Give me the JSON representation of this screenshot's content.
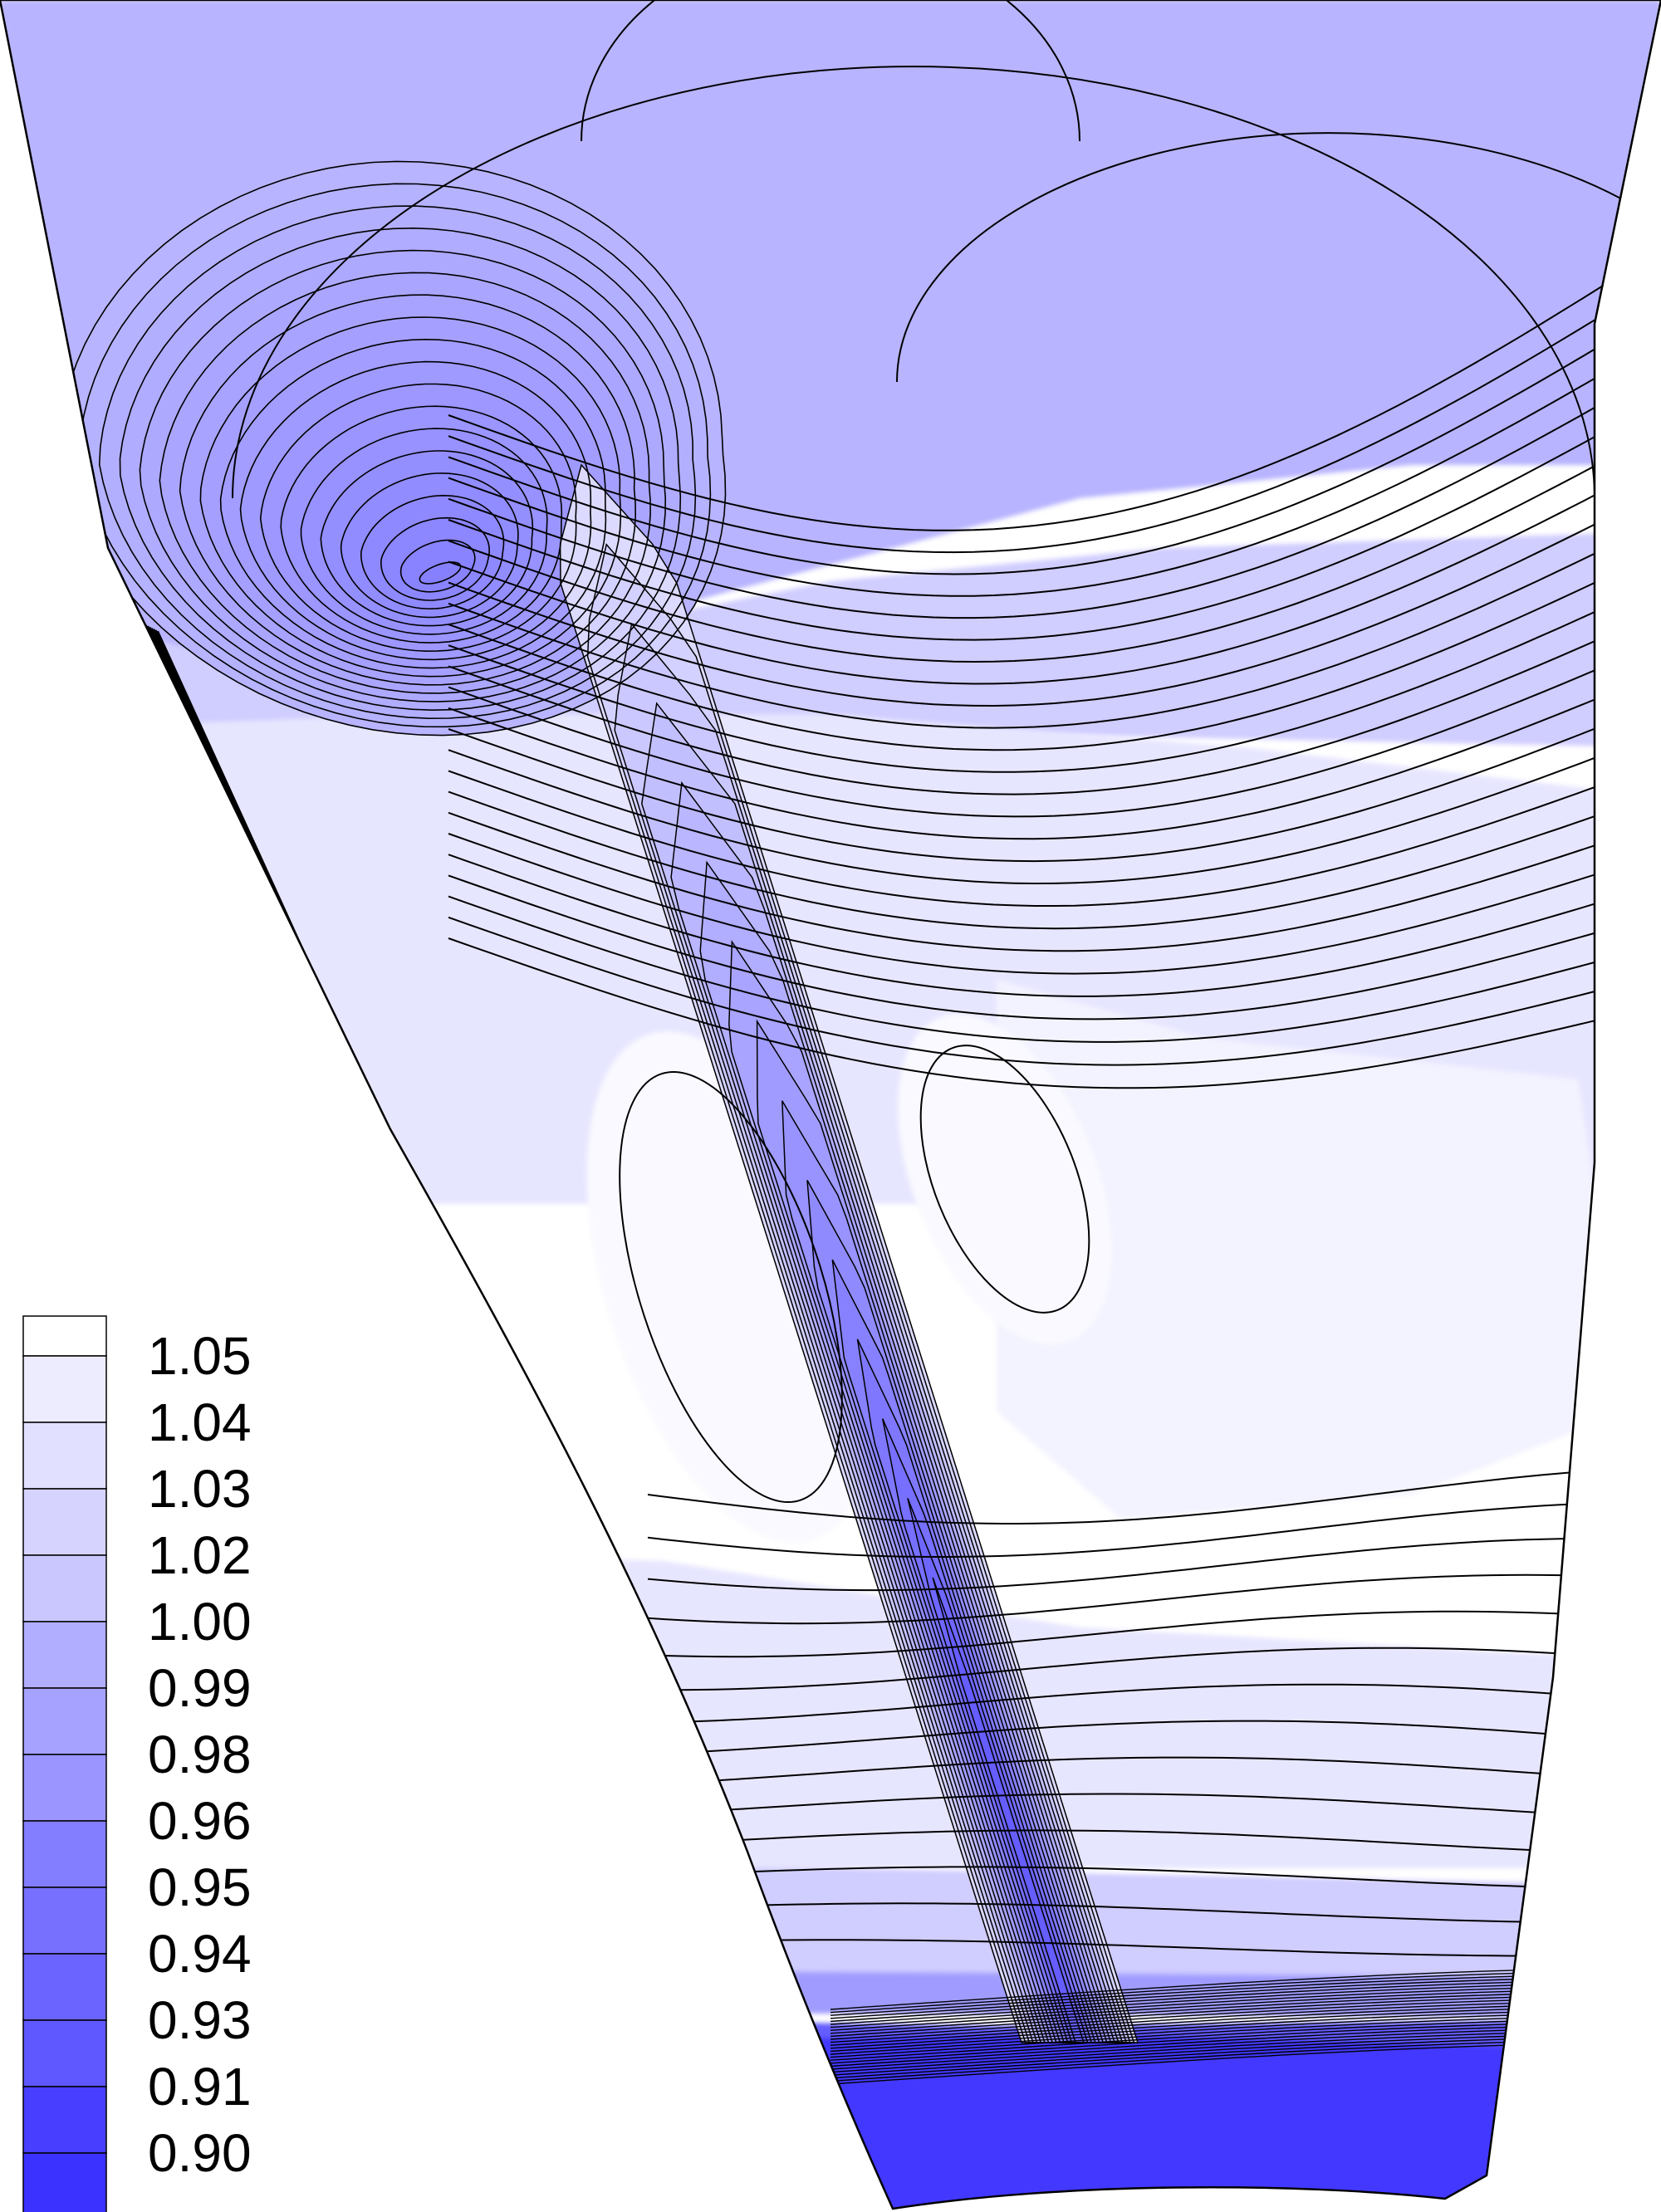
{
  "chart_data": {
    "type": "heatmap",
    "subtype": "filled-contour",
    "title": "",
    "xlabel": "",
    "ylabel": "",
    "colormap": {
      "low_color": "#3c32ff",
      "high_color": "#ffffff",
      "range": [
        0.895,
        1.06
      ]
    },
    "legend": {
      "placement": "bottom-left",
      "labels": [
        "1.05",
        "1.04",
        "1.03",
        "1.02",
        "1.00",
        "0.99",
        "0.98",
        "0.96",
        "0.95",
        "0.94",
        "0.93",
        "0.91",
        "0.90"
      ],
      "level_values": [
        1.05,
        1.04,
        1.03,
        1.02,
        1.0,
        0.99,
        0.98,
        0.96,
        0.95,
        0.94,
        0.93,
        0.91,
        0.9
      ]
    },
    "features": [
      {
        "name": "upper-left low",
        "min_value": 0.96
      },
      {
        "name": "wake core",
        "min_value": 0.93
      },
      {
        "name": "bottom band",
        "min_value": 0.9
      }
    ]
  }
}
